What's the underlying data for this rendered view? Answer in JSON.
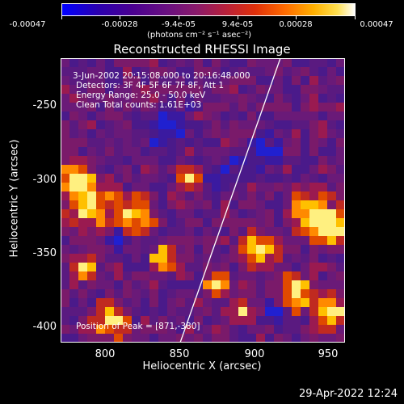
{
  "colorbar": {
    "ticks": [
      "-0.00047",
      "-0.00028",
      "-9.4e-05",
      "9.4e-05",
      "0.00028",
      "0.00047"
    ],
    "units": "(photons cm⁻² s⁻¹ asec⁻²)"
  },
  "title": "Reconstructed RHESSI Image",
  "info": {
    "time": "3-Jun-2002 20:15:08.000 to 20:16:48.000",
    "detectors": "Detectors: 3F 4F 5F 6F 7F 8F, Att 1",
    "energy": "Energy Range: 25.0 - 50.0 keV",
    "clean": "Clean     Total counts: 1.61E+03",
    "peak": "Position of Peak = [871,-380]"
  },
  "axes": {
    "xlabel": "Heliocentric X (arcsec)",
    "ylabel": "Heliocentric Y (arcsec)",
    "xticks": [
      "800",
      "850",
      "900",
      "950"
    ],
    "yticks": [
      "-250",
      "-300",
      "-350",
      "-400"
    ]
  },
  "datestamp": "29-Apr-2022 12:24"
}
